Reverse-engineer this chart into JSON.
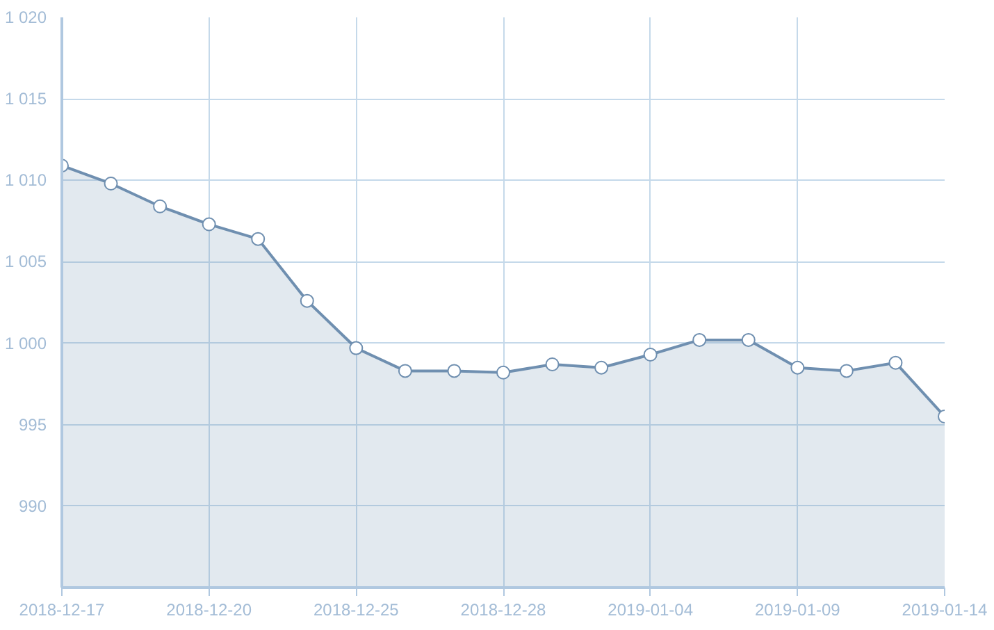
{
  "chart_data": {
    "type": "area",
    "categories": [
      "2018-12-17",
      null,
      null,
      "2018-12-20",
      null,
      null,
      "2018-12-25",
      null,
      null,
      "2018-12-28",
      null,
      null,
      "2019-01-04",
      null,
      null,
      "2019-01-09",
      null,
      null,
      "2019-01-14"
    ],
    "series": [
      {
        "color": "#6f8fb0",
        "values": [
          1010.9,
          1009.8,
          1008.4,
          1007.3,
          1006.4,
          1002.6,
          999.7,
          998.3,
          998.3,
          998.2,
          998.7,
          998.5,
          999.3,
          1000.2,
          1000.2,
          998.5,
          998.3,
          998.8,
          995.5
        ]
      }
    ],
    "ylim": [
      985,
      1020
    ],
    "yticks": [
      {
        "value": 990,
        "label": "990"
      },
      {
        "value": 995,
        "label": "995"
      },
      {
        "value": 1000,
        "label": "1 000"
      },
      {
        "value": 1005,
        "label": "1 005"
      },
      {
        "value": 1010,
        "label": "1 010"
      },
      {
        "value": 1015,
        "label": "1 015"
      },
      {
        "value": 1020,
        "label": "1 020"
      }
    ],
    "grid": true,
    "marker": "circle"
  }
}
